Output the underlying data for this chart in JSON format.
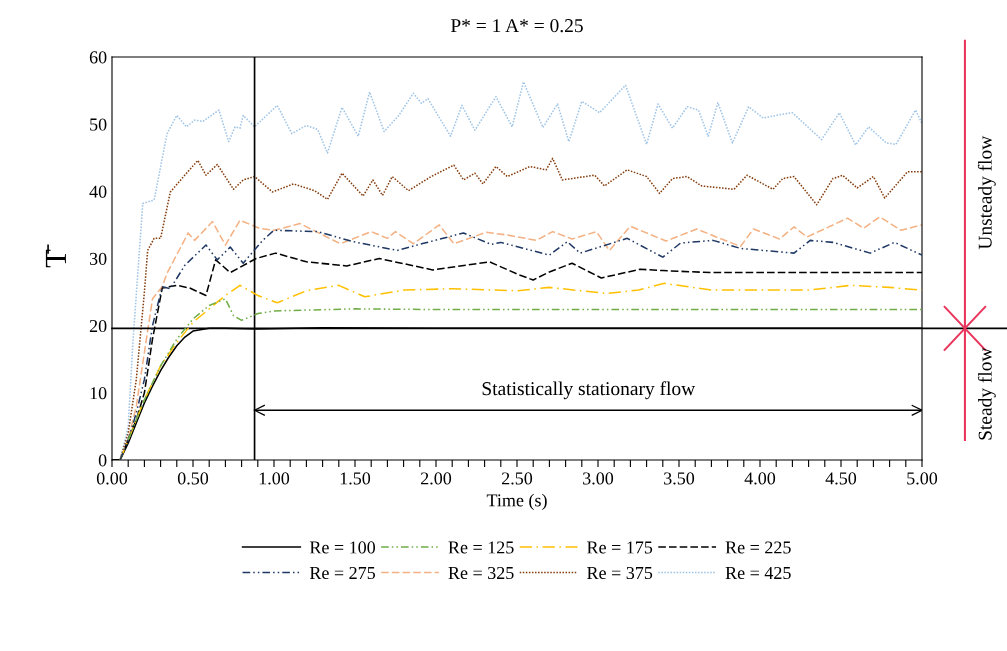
{
  "chart_data": {
    "type": "line",
    "title": "P* = 1 A* = 0.25",
    "xlabel": "Time (s)",
    "ylabel": "T̄",
    "xlim": [
      0,
      5
    ],
    "ylim": [
      0,
      60
    ],
    "xticks": [
      {
        "value": 0,
        "label": "0.00"
      },
      {
        "value": 0.1,
        "label": null
      },
      {
        "value": 0.2,
        "label": null
      },
      {
        "value": 0.3,
        "label": null
      },
      {
        "value": 0.4,
        "label": null
      },
      {
        "value": 0.5,
        "label": "0.50"
      },
      {
        "value": 0.6,
        "label": null
      },
      {
        "value": 0.7,
        "label": null
      },
      {
        "value": 0.8,
        "label": null
      },
      {
        "value": 0.9,
        "label": null
      },
      {
        "value": 1,
        "label": "1.00"
      },
      {
        "value": 1.1,
        "label": null
      },
      {
        "value": 1.2,
        "label": null
      },
      {
        "value": 1.3,
        "label": null
      },
      {
        "value": 1.4,
        "label": null
      },
      {
        "value": 1.5,
        "label": "1.50"
      },
      {
        "value": 1.6,
        "label": null
      },
      {
        "value": 1.7,
        "label": null
      },
      {
        "value": 1.8,
        "label": null
      },
      {
        "value": 1.9,
        "label": null
      },
      {
        "value": 2,
        "label": "2.00"
      },
      {
        "value": 2.1,
        "label": null
      },
      {
        "value": 2.2,
        "label": null
      },
      {
        "value": 2.3,
        "label": null
      },
      {
        "value": 2.4,
        "label": null
      },
      {
        "value": 2.5,
        "label": "2.50"
      },
      {
        "value": 2.6,
        "label": null
      },
      {
        "value": 2.7,
        "label": null
      },
      {
        "value": 2.8,
        "label": null
      },
      {
        "value": 2.9,
        "label": null
      },
      {
        "value": 3,
        "label": "3.00"
      },
      {
        "value": 3.1,
        "label": null
      },
      {
        "value": 3.2,
        "label": null
      },
      {
        "value": 3.3,
        "label": null
      },
      {
        "value": 3.4,
        "label": null
      },
      {
        "value": 3.5,
        "label": "3.50"
      },
      {
        "value": 3.6,
        "label": null
      },
      {
        "value": 3.7,
        "label": null
      },
      {
        "value": 3.8,
        "label": null
      },
      {
        "value": 3.9,
        "label": null
      },
      {
        "value": 4,
        "label": "4.00"
      },
      {
        "value": 4.1,
        "label": null
      },
      {
        "value": 4.2,
        "label": null
      },
      {
        "value": 4.3,
        "label": null
      },
      {
        "value": 4.4,
        "label": null
      },
      {
        "value": 4.5,
        "label": "4.50"
      },
      {
        "value": 4.6,
        "label": null
      },
      {
        "value": 4.7,
        "label": null
      },
      {
        "value": 4.8,
        "label": null
      },
      {
        "value": 4.9,
        "label": null
      },
      {
        "value": 5,
        "label": "5.00"
      }
    ],
    "yticks": [
      0,
      10,
      20,
      30,
      40,
      50,
      60
    ],
    "grid": false,
    "legend": "bottom",
    "marker": "none",
    "series": [
      {
        "name": "Re = 100",
        "color": "#000000",
        "line_style": "solid",
        "x": [
          0,
          0.05,
          0.1,
          0.15,
          0.2,
          0.25,
          0.3,
          0.35,
          0.4,
          0.45,
          0.5,
          0.6,
          0.7,
          0.9,
          1.3,
          2,
          3,
          4,
          5
        ],
        "values": [
          0,
          0,
          2.5,
          5.5,
          8.5,
          11,
          13.3,
          15.3,
          17,
          18.3,
          19.2,
          19.6,
          19.6,
          19.5,
          19.7,
          19.6,
          19.6,
          19.6,
          19.6
        ]
      },
      {
        "name": "Re = 125",
        "color": "#70ad47",
        "line_style": "dashdotdot",
        "x": [
          0.1,
          0.15,
          0.2,
          0.3,
          0.4,
          0.5,
          0.6,
          0.7,
          0.75,
          0.8,
          0.9,
          1.0,
          1.5,
          2,
          3,
          4,
          5
        ],
        "values": [
          3,
          6,
          9,
          14,
          18,
          21,
          23,
          24,
          21.5,
          20.8,
          21.8,
          22.2,
          22.5,
          22.4,
          22.4,
          22.4,
          22.4
        ]
      },
      {
        "name": "Re = 175",
        "color": "#ffc000",
        "line_style": "dashdot",
        "x": [
          0.05,
          0.1,
          0.15,
          0.2,
          0.3,
          0.4,
          0.5,
          0.6,
          0.7,
          0.79,
          0.9,
          1.02,
          1.2,
          1.4,
          1.56,
          1.8,
          2.1,
          2.5,
          2.7,
          3.05,
          3.25,
          3.41,
          3.7,
          4.0,
          4.3,
          4.56,
          4.8,
          5.0
        ],
        "values": [
          0,
          3,
          6,
          9,
          14,
          17.5,
          20.5,
          22.5,
          24.5,
          26.0,
          24.5,
          23.4,
          25.2,
          26.0,
          24.3,
          25.3,
          25.5,
          25.2,
          25.7,
          24.8,
          25.3,
          26.3,
          25.3,
          25.3,
          25.3,
          26.0,
          25.7,
          25.3
        ]
      },
      {
        "name": "Re = 225",
        "color": "#000000",
        "line_style": "dashed",
        "x": [
          0,
          0.05,
          0.1,
          0.15,
          0.2,
          0.25,
          0.31,
          0.4,
          0.48,
          0.58,
          0.64,
          0.73,
          0.89,
          1.01,
          1.2,
          1.45,
          1.65,
          1.98,
          2.33,
          2.52,
          2.6,
          2.7,
          2.84,
          3.02,
          3.26,
          3.4,
          3.7,
          4.0,
          4.5,
          5.0
        ],
        "values": [
          0,
          0,
          3,
          6,
          10,
          18,
          25.6,
          26,
          25.6,
          24.5,
          29.8,
          27.9,
          30.0,
          30.8,
          29.5,
          28.9,
          30,
          28.3,
          29.5,
          27.5,
          26.8,
          28.0,
          29.3,
          27.1,
          28.4,
          28.2,
          27.9,
          27.9,
          27.9,
          27.9
        ]
      },
      {
        "name": "Re = 275",
        "color": "#1f3864",
        "line_style": "dashdotdot",
        "x": [
          0.05,
          0.1,
          0.15,
          0.2,
          0.25,
          0.31,
          0.36,
          0.45,
          0.58,
          0.65,
          0.73,
          0.81,
          0.93,
          1.0,
          1.27,
          1.49,
          1.76,
          1.93,
          2.17,
          2.34,
          2.4,
          2.7,
          2.81,
          2.89,
          3.18,
          3.4,
          3.51,
          3.71,
          3.88,
          4.21,
          4.31,
          4.45,
          4.68,
          4.83,
          5.0
        ],
        "values": [
          0,
          3,
          7,
          12,
          20,
          25.8,
          25.5,
          29,
          32.0,
          29.8,
          31.7,
          29.3,
          32.7,
          34.2,
          34.0,
          32.5,
          31.2,
          32.3,
          33.8,
          32.1,
          32.4,
          30.5,
          32.5,
          30.8,
          33.0,
          30.2,
          32.3,
          32.7,
          31.5,
          30.8,
          32.7,
          32.4,
          30.8,
          32.4,
          30.5
        ]
      },
      {
        "name": "Re = 325",
        "color": "#f4b183",
        "line_style": "dashed",
        "x": [
          0,
          0.05,
          0.1,
          0.15,
          0.2,
          0.25,
          0.31,
          0.34,
          0.47,
          0.51,
          0.62,
          0.7,
          0.79,
          0.91,
          1.0,
          1.16,
          1.41,
          1.6,
          1.7,
          1.75,
          1.86,
          2.02,
          2.11,
          2.31,
          2.44,
          2.62,
          2.72,
          2.84,
          2.99,
          3.07,
          3.2,
          3.42,
          3.61,
          3.73,
          3.88,
          3.96,
          4.12,
          4.21,
          4.29,
          4.54,
          4.64,
          4.74,
          4.87,
          5.0
        ],
        "values": [
          0,
          0,
          3,
          8,
          16,
          24,
          25.8,
          27.8,
          33.8,
          32.7,
          35.5,
          32.0,
          35.7,
          34.5,
          34.2,
          35.2,
          32.2,
          34.0,
          33.0,
          34.0,
          32.2,
          35.0,
          32.2,
          33.9,
          33.5,
          32.7,
          34.0,
          32.9,
          34.0,
          31.2,
          34.8,
          32.6,
          34.4,
          33.2,
          31.8,
          34.4,
          32.9,
          34.7,
          33.2,
          36.0,
          34.5,
          36.2,
          34.2,
          35.0
        ]
      },
      {
        "name": "Re = 375",
        "color": "#843c0c",
        "line_style": "dotted",
        "x": [
          0,
          0.05,
          0.1,
          0.15,
          0.2,
          0.22,
          0.26,
          0.3,
          0.36,
          0.46,
          0.53,
          0.58,
          0.65,
          0.75,
          0.81,
          0.88,
          0.99,
          1.12,
          1.25,
          1.33,
          1.42,
          1.55,
          1.61,
          1.67,
          1.73,
          1.83,
          1.97,
          2.11,
          2.17,
          2.24,
          2.29,
          2.37,
          2.44,
          2.58,
          2.68,
          2.72,
          2.78,
          2.98,
          3.04,
          3.18,
          3.3,
          3.38,
          3.46,
          3.55,
          3.64,
          3.84,
          3.92,
          4.08,
          4.14,
          4.21,
          4.35,
          4.45,
          4.51,
          4.6,
          4.7,
          4.77,
          4.91,
          5.0
        ],
        "values": [
          0,
          0,
          4,
          12,
          25,
          31.2,
          33,
          33,
          39.9,
          42.7,
          44.6,
          42.4,
          44.0,
          40.3,
          41.7,
          42.2,
          39.9,
          41.1,
          40.1,
          38.8,
          42.7,
          39.3,
          41.7,
          39.4,
          42.2,
          40.1,
          42.2,
          43.9,
          41.7,
          42.7,
          41.1,
          43.7,
          42.2,
          43.7,
          43.2,
          44.9,
          41.7,
          42.4,
          40.8,
          43.2,
          42.2,
          39.7,
          41.9,
          42.2,
          40.8,
          40.3,
          42.4,
          40.3,
          41.9,
          42.2,
          38.0,
          41.9,
          42.4,
          40.5,
          42.2,
          39.0,
          42.9,
          42.9
        ]
      },
      {
        "color": "#000000",
        "line_style": "solid",
        "x": [
          0.88,
          5
        ],
        "values": [
          7.4,
          7.4
        ]
      },
      {
        "name": "Re = 425",
        "color": "#9dc3e6",
        "line_style": "dotted",
        "x": [
          0,
          0.05,
          0.1,
          0.13,
          0.19,
          0.26,
          0.34,
          0.4,
          0.46,
          0.51,
          0.56,
          0.66,
          0.72,
          0.76,
          0.79,
          0.81,
          0.88,
          1.02,
          1.11,
          1.2,
          1.27,
          1.33,
          1.42,
          1.52,
          1.59,
          1.68,
          1.77,
          1.86,
          1.91,
          1.95,
          2.09,
          2.16,
          2.24,
          2.37,
          2.47,
          2.54,
          2.66,
          2.75,
          2.82,
          2.9,
          3.01,
          3.17,
          3.3,
          3.37,
          3.46,
          3.55,
          3.62,
          3.68,
          3.74,
          3.83,
          3.93,
          4.02,
          4.12,
          4.2,
          4.38,
          4.49,
          4.59,
          4.67,
          4.78,
          4.84,
          4.96,
          5.0
        ],
        "values": [
          0,
          0,
          5,
          17.9,
          38.2,
          38.7,
          48.6,
          51.3,
          49.6,
          50.6,
          50.4,
          52.1,
          47.4,
          49.6,
          49.4,
          51.3,
          49.6,
          52.8,
          48.6,
          49.8,
          49.2,
          45.7,
          52.5,
          48.2,
          54.8,
          48.9,
          51.3,
          54.6,
          53.1,
          53.8,
          48.2,
          52.8,
          49.1,
          54.1,
          49.6,
          56.3,
          49.5,
          53.0,
          47.4,
          53.4,
          51.7,
          55.8,
          47.0,
          53.0,
          49.4,
          52.6,
          52.1,
          48.2,
          53.2,
          47.2,
          52.6,
          50.9,
          51.4,
          51.7,
          47.7,
          51.7,
          46.9,
          49.6,
          47.2,
          47.0,
          52.1,
          50.1
        ]
      }
    ],
    "ref_lines": [
      {
        "axis": "x",
        "value": 0.88,
        "color": "#000000"
      },
      {
        "axis": "y",
        "value": 19.6,
        "color": "#000000"
      }
    ],
    "annotations": [
      "Statistically stationary flow",
      "Unsteady flow",
      "Steady flow"
    ]
  }
}
